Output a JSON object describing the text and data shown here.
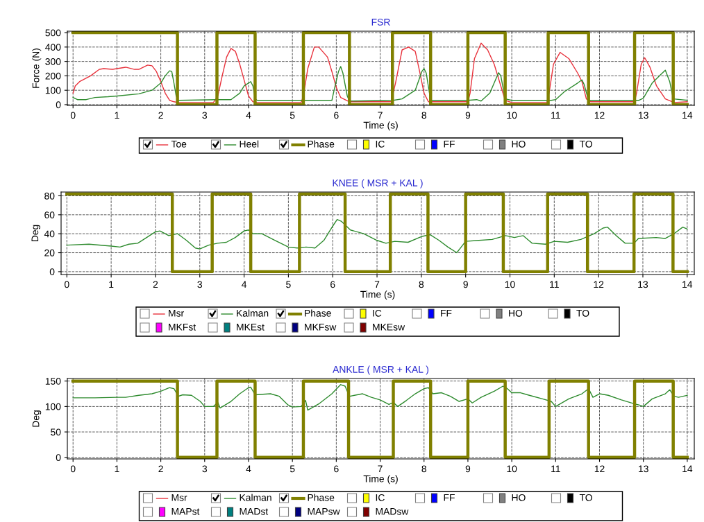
{
  "chart_data": [
    {
      "type": "line",
      "title": "FSR",
      "xlabel": "Time (s)",
      "ylabel": "Force (N)",
      "xlim": [
        -0.13,
        14.16
      ],
      "ylim": [
        -5,
        510
      ],
      "xticks": [
        0,
        1,
        2,
        3,
        4,
        5,
        6,
        7,
        8,
        9,
        10,
        11,
        12,
        13,
        14
      ],
      "yticks": [
        0,
        100,
        200,
        300,
        400,
        500
      ],
      "grid": true,
      "legend": "bottom",
      "series": [
        {
          "name": "Toe",
          "color": "#e8323c",
          "x": [
            0,
            0.05,
            0.15,
            0.4,
            0.6,
            0.7,
            0.9,
            1.0,
            1.2,
            1.4,
            1.5,
            1.7,
            1.8,
            1.9,
            2.0,
            2.1,
            2.2,
            2.3,
            2.4,
            3.2,
            3.3,
            3.4,
            3.5,
            3.6,
            3.7,
            3.8,
            3.9,
            4.0,
            4.1,
            4.2,
            5.2,
            5.25,
            5.35,
            5.5,
            5.6,
            5.8,
            5.9,
            6.0,
            6.1,
            6.3,
            7.25,
            7.35,
            7.5,
            7.65,
            7.8,
            7.9,
            8.0,
            8.1,
            9.0,
            9.05,
            9.15,
            9.3,
            9.45,
            9.6,
            9.75,
            9.85,
            10.0,
            10.8,
            10.85,
            10.95,
            11.1,
            11.3,
            11.5,
            11.6,
            11.7,
            11.8,
            12.8,
            12.85,
            12.95,
            13.03,
            13.15,
            13.3,
            13.5,
            13.7,
            14
          ],
          "values": [
            80,
            130,
            160,
            200,
            245,
            250,
            245,
            250,
            260,
            245,
            245,
            275,
            270,
            230,
            160,
            80,
            30,
            20,
            15,
            15,
            60,
            200,
            330,
            390,
            370,
            280,
            170,
            60,
            20,
            15,
            15,
            60,
            250,
            400,
            400,
            330,
            230,
            120,
            50,
            20,
            20,
            150,
            380,
            400,
            370,
            230,
            80,
            20,
            20,
            80,
            320,
            427,
            380,
            280,
            130,
            30,
            15,
            15,
            80,
            280,
            363,
            320,
            220,
            160,
            40,
            20,
            20,
            90,
            280,
            326,
            260,
            130,
            40,
            15,
            20
          ]
        },
        {
          "name": "Heel",
          "color": "#2e8b2e",
          "x": [
            0,
            0.1,
            0.3,
            0.5,
            0.8,
            1.0,
            1.5,
            1.8,
            2.0,
            2.1,
            2.2,
            2.25,
            2.3,
            2.35,
            2.4,
            3.3,
            3.6,
            3.8,
            3.9,
            4.05,
            4.1,
            4.15,
            4.2,
            5.9,
            5.95,
            6.05,
            6.1,
            6.15,
            6.25,
            6.3,
            7.3,
            7.5,
            7.8,
            7.95,
            8.0,
            8.05,
            8.15,
            9.0,
            9.2,
            9.3,
            9.5,
            9.7,
            9.75,
            9.85,
            10.0,
            10.9,
            11.0,
            11.2,
            11.5,
            11.6,
            11.65,
            11.75,
            12.9,
            13.0,
            13.2,
            13.4,
            13.5,
            13.6,
            13.68,
            14
          ],
          "values": [
            50,
            35,
            35,
            50,
            55,
            60,
            75,
            100,
            150,
            200,
            235,
            230,
            150,
            60,
            30,
            35,
            35,
            80,
            130,
            160,
            130,
            40,
            30,
            30,
            100,
            230,
            265,
            220,
            60,
            25,
            30,
            40,
            100,
            230,
            250,
            220,
            30,
            30,
            35,
            25,
            80,
            222,
            200,
            40,
            30,
            30,
            35,
            90,
            150,
            172,
            140,
            30,
            30,
            45,
            150,
            210,
            239,
            160,
            40,
            30
          ]
        },
        {
          "name": "Phase",
          "type": "step",
          "color": "#808000",
          "x": [
            0,
            2.38,
            3.28,
            4.15,
            5.25,
            6.3,
            7.28,
            8.15,
            9.0,
            9.85,
            10.83,
            11.75,
            12.8,
            13.68,
            14
          ],
          "values": [
            500,
            0,
            500,
            0,
            500,
            0,
            500,
            0,
            500,
            0,
            500,
            0,
            500,
            0,
            0
          ]
        },
        {
          "name": "IC",
          "marker": "square",
          "color": "#ffff00"
        },
        {
          "name": "FF",
          "marker": "square",
          "color": "#0000ff"
        },
        {
          "name": "HO",
          "marker": "square",
          "color": "#808080"
        },
        {
          "name": "TO",
          "marker": "square",
          "color": "#000000"
        }
      ]
    },
    {
      "type": "line",
      "title": "KNEE ( MSR + KAL )",
      "xlabel": "Time (s)",
      "ylabel": "Deg",
      "xlim": [
        -0.13,
        14.16
      ],
      "ylim": [
        -3,
        84
      ],
      "xticks": [
        0,
        1,
        2,
        3,
        4,
        5,
        6,
        7,
        8,
        9,
        10,
        11,
        12,
        13,
        14
      ],
      "yticks": [
        0,
        20,
        40,
        60,
        80
      ],
      "grid": true,
      "legend": "bottom",
      "series": [
        {
          "name": "Msr",
          "color": "#e8323c"
        },
        {
          "name": "Kalman",
          "color": "#2e8b2e",
          "x": [
            0,
            0.5,
            1.0,
            1.2,
            1.4,
            1.6,
            1.8,
            2.0,
            2.1,
            2.3,
            2.5,
            2.7,
            2.9,
            3.0,
            3.2,
            3.4,
            3.6,
            3.8,
            4.0,
            4.1,
            4.2,
            4.4,
            4.7,
            5.0,
            5.2,
            5.4,
            5.6,
            5.8,
            6.0,
            6.1,
            6.2,
            6.4,
            6.7,
            7.0,
            7.2,
            7.4,
            7.7,
            8.0,
            8.2,
            8.4,
            8.6,
            8.8,
            8.9,
            9.0,
            9.3,
            9.6,
            9.9,
            10.1,
            10.3,
            10.5,
            10.8,
            11.0,
            11.3,
            11.6,
            11.9,
            12.1,
            12.2,
            12.4,
            12.6,
            12.8,
            12.9,
            13.3,
            13.5,
            13.7,
            13.9,
            14
          ],
          "values": [
            28,
            29,
            27,
            26,
            29,
            30,
            36,
            42,
            43,
            38,
            40,
            33,
            25,
            24,
            28,
            30,
            31,
            36,
            43,
            44,
            40,
            40,
            33,
            26,
            25,
            26,
            25,
            33,
            48,
            55,
            53,
            44,
            40,
            33,
            30,
            32,
            31,
            37,
            39,
            33,
            26,
            20,
            26,
            32,
            33,
            34,
            38,
            36,
            38,
            30,
            29,
            32,
            31,
            34,
            40,
            46,
            47,
            38,
            30,
            30,
            35,
            36,
            35,
            40,
            47,
            45
          ]
        },
        {
          "name": "Phase",
          "type": "step",
          "color": "#808000",
          "x": [
            0,
            2.38,
            3.28,
            4.15,
            5.25,
            6.28,
            7.3,
            8.15,
            9.0,
            9.85,
            10.85,
            11.75,
            12.8,
            13.68,
            14
          ],
          "values": [
            82,
            0,
            82,
            0,
            82,
            0,
            82,
            0,
            82,
            0,
            82,
            0,
            82,
            0,
            0
          ]
        },
        {
          "name": "IC",
          "marker": "square",
          "color": "#ffff00"
        },
        {
          "name": "FF",
          "marker": "square",
          "color": "#0000ff"
        },
        {
          "name": "HO",
          "marker": "square",
          "color": "#808080"
        },
        {
          "name": "TO",
          "marker": "square",
          "color": "#000000"
        },
        {
          "name": "MKFst",
          "marker": "square",
          "color": "#ff00ff"
        },
        {
          "name": "MKEst",
          "marker": "square",
          "color": "#008080"
        },
        {
          "name": "MKFsw",
          "marker": "square",
          "color": "#000080"
        },
        {
          "name": "MKEsw",
          "marker": "square",
          "color": "#800000"
        }
      ]
    },
    {
      "type": "line",
      "title": "ANKLE ( MSR + KAL )",
      "xlabel": "Time (s)",
      "ylabel": "Deg",
      "xlim": [
        -0.13,
        14.16
      ],
      "ylim": [
        -3,
        155
      ],
      "xticks": [
        0,
        1,
        2,
        3,
        4,
        5,
        6,
        7,
        8,
        9,
        10,
        11,
        12,
        13,
        14
      ],
      "yticks": [
        0,
        50,
        100,
        150
      ],
      "grid": true,
      "legend": "bottom",
      "series": [
        {
          "name": "Msr",
          "color": "#e8323c"
        },
        {
          "name": "Kalman",
          "color": "#2e8b2e",
          "x": [
            0,
            0.5,
            1.0,
            1.2,
            1.5,
            1.8,
            2.0,
            2.2,
            2.3,
            2.4,
            2.5,
            2.7,
            2.9,
            3.0,
            3.2,
            3.3,
            3.35,
            3.6,
            3.8,
            4.0,
            4.05,
            4.15,
            4.5,
            4.7,
            4.9,
            5.0,
            5.2,
            5.3,
            5.35,
            5.6,
            5.9,
            6.1,
            6.2,
            6.3,
            6.6,
            6.8,
            7.0,
            7.2,
            7.3,
            7.4,
            7.6,
            7.8,
            8.0,
            8.1,
            8.2,
            8.4,
            8.6,
            8.8,
            9.0,
            9.1,
            9.3,
            9.6,
            9.8,
            9.9,
            10.0,
            10.2,
            10.4,
            10.7,
            10.9,
            11.0,
            11.3,
            11.6,
            11.75,
            11.85,
            12.0,
            12.2,
            12.5,
            12.8,
            12.9,
            13.0,
            13.2,
            13.5,
            13.6,
            13.7,
            13.8,
            14
          ],
          "values": [
            117,
            117,
            118,
            118,
            122,
            125,
            130,
            137,
            135,
            120,
            123,
            122,
            110,
            100,
            100,
            108,
            97,
            110,
            125,
            137,
            138,
            123,
            125,
            120,
            103,
            99,
            100,
            112,
            93,
            105,
            125,
            143,
            140,
            120,
            125,
            118,
            113,
            104,
            108,
            100,
            112,
            125,
            135,
            137,
            125,
            127,
            120,
            110,
            115,
            107,
            118,
            130,
            140,
            135,
            127,
            127,
            122,
            115,
            110,
            100,
            115,
            125,
            135,
            118,
            125,
            122,
            113,
            105,
            103,
            100,
            115,
            125,
            133,
            120,
            118,
            122
          ]
        },
        {
          "name": "Phase",
          "type": "step",
          "color": "#808000",
          "x": [
            0,
            2.38,
            3.28,
            4.15,
            5.25,
            6.28,
            7.3,
            8.15,
            9.0,
            9.85,
            10.85,
            11.75,
            12.8,
            13.68,
            14
          ],
          "values": [
            150,
            0,
            150,
            0,
            150,
            0,
            150,
            0,
            150,
            0,
            150,
            0,
            150,
            0,
            0
          ]
        },
        {
          "name": "IC",
          "marker": "square",
          "color": "#ffff00"
        },
        {
          "name": "FF",
          "marker": "square",
          "color": "#0000ff"
        },
        {
          "name": "HO",
          "marker": "square",
          "color": "#808080"
        },
        {
          "name": "TO",
          "marker": "square",
          "color": "#000000"
        },
        {
          "name": "MAPst",
          "marker": "square",
          "color": "#ff00ff"
        },
        {
          "name": "MADst",
          "marker": "square",
          "color": "#008080"
        },
        {
          "name": "MAPsw",
          "marker": "square",
          "color": "#000080"
        },
        {
          "name": "MADsw",
          "marker": "square",
          "color": "#800000"
        }
      ]
    }
  ]
}
